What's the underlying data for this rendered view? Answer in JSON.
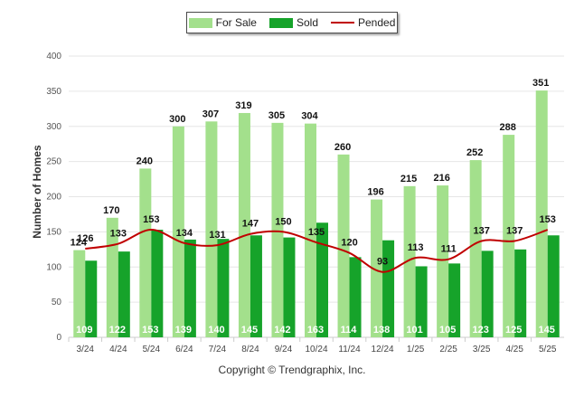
{
  "chart_data": {
    "type": "bar",
    "categories": [
      "3/24",
      "4/24",
      "5/24",
      "6/24",
      "7/24",
      "8/24",
      "9/24",
      "10/24",
      "11/24",
      "12/24",
      "1/25",
      "2/25",
      "3/25",
      "4/25",
      "5/25"
    ],
    "series": [
      {
        "name": "For Sale",
        "type": "bar",
        "color": "#a3e08c",
        "values": [
          124,
          170,
          240,
          300,
          307,
          319,
          305,
          304,
          260,
          196,
          215,
          216,
          252,
          288,
          351
        ]
      },
      {
        "name": "Sold",
        "type": "bar",
        "color": "#16a32a",
        "values": [
          109,
          122,
          153,
          139,
          140,
          145,
          142,
          163,
          114,
          138,
          101,
          105,
          123,
          125,
          145
        ]
      },
      {
        "name": "Pended",
        "type": "line",
        "color": "#c00000",
        "values": [
          126,
          133,
          153,
          134,
          131,
          147,
          150,
          135,
          120,
          93,
          113,
          111,
          137,
          137,
          153
        ]
      }
    ],
    "ylabel": "Number of Homes",
    "ylim": [
      0,
      400
    ],
    "yticks": [
      0,
      50,
      100,
      150,
      200,
      250,
      300,
      350,
      400
    ],
    "grid": true,
    "legend_position": "top-center"
  },
  "footer": {
    "copyright": "Copyright © Trendgraphix, Inc."
  }
}
